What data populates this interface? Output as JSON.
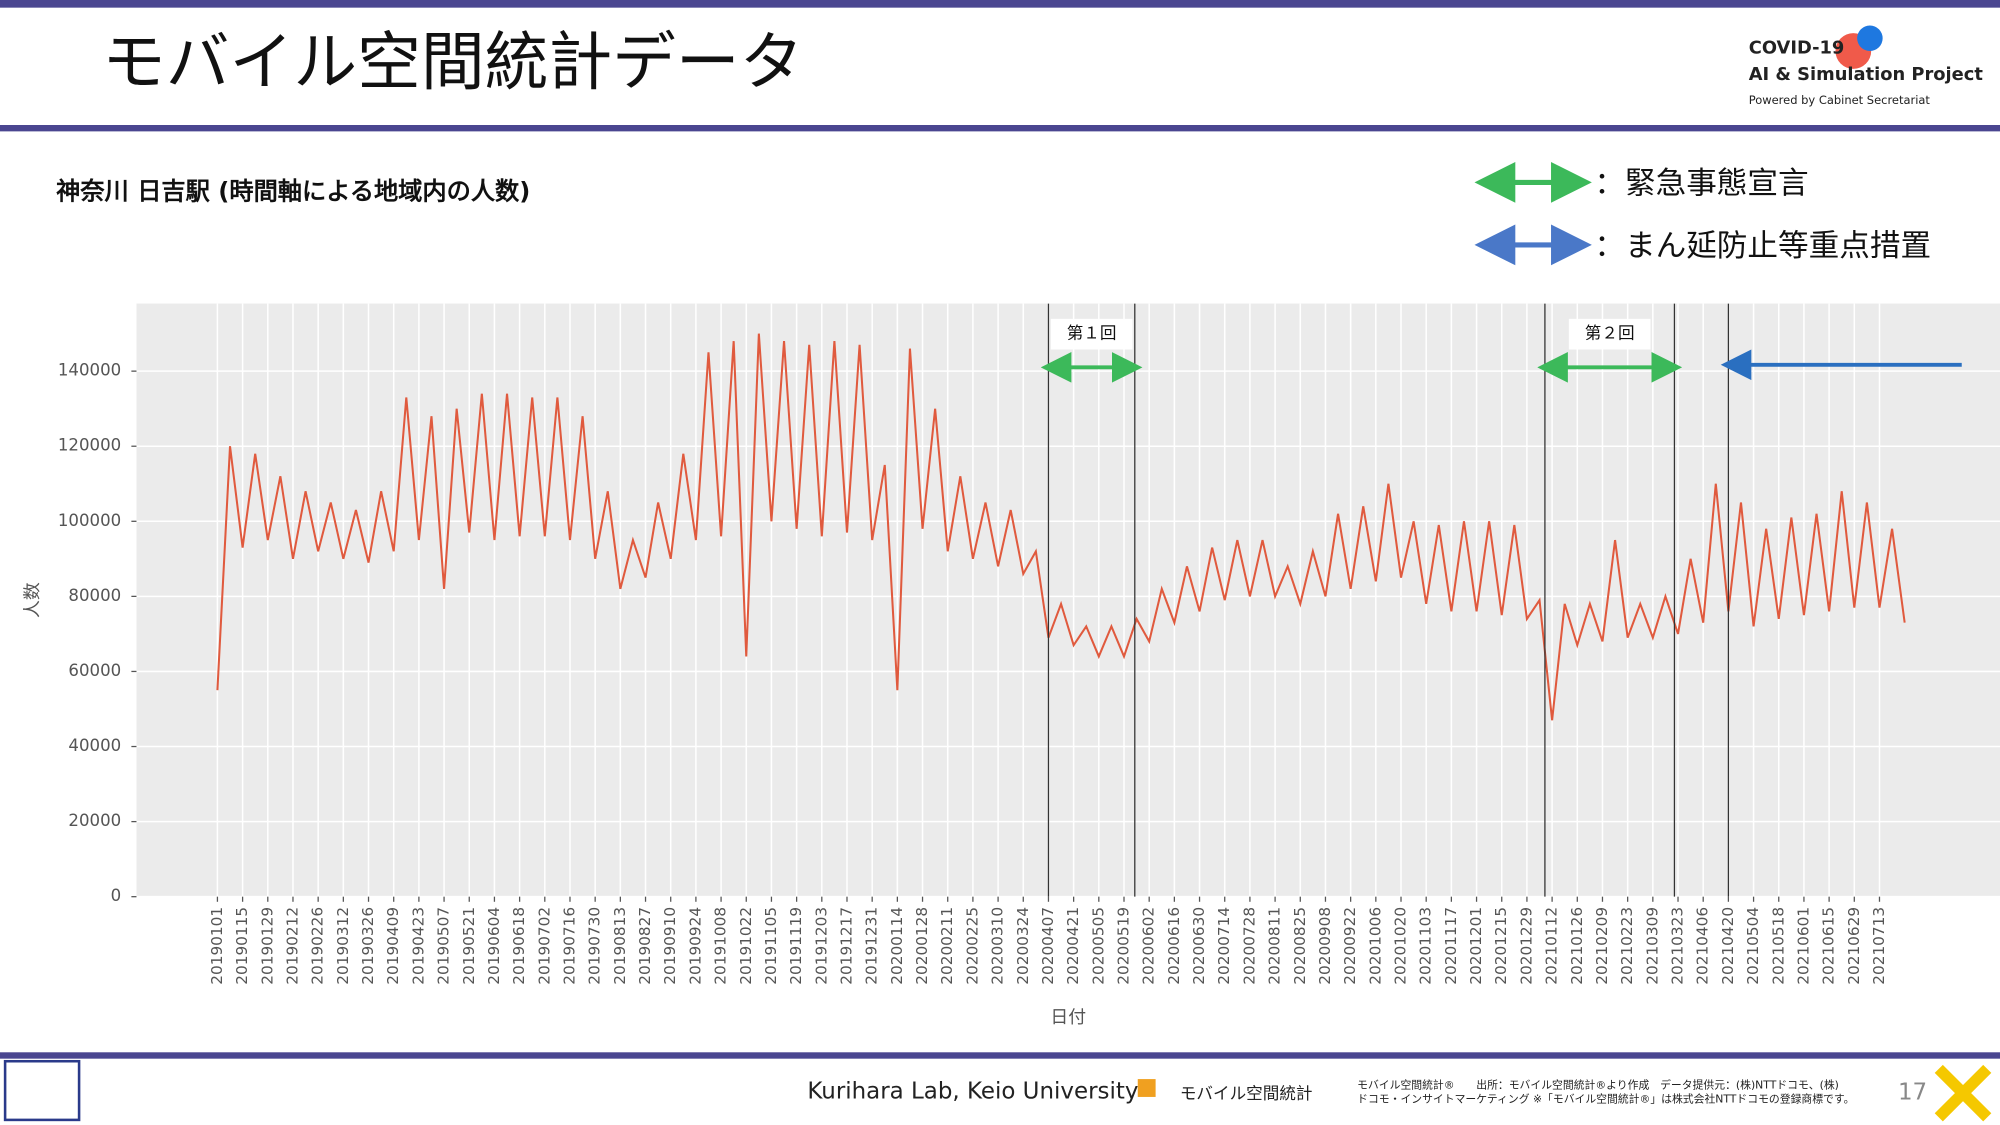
{
  "header": {
    "title": "モバイル空間統計データ",
    "logo_line1": "COVID-19",
    "logo_line2": "AI & Simulation Project",
    "logo_line3": "Powered by Cabinet Secretariat"
  },
  "legend": [
    {
      "text": "：緊急事態宣言",
      "color": "#3cb95a"
    },
    {
      "text": "：まん延防止等重点措置",
      "color": "#4a78c8"
    }
  ],
  "chart_data": {
    "type": "line",
    "title": "神奈川 日吉駅 (時間軸による地域内の人数)",
    "ylabel": "人数",
    "xlabel": "日付",
    "ylim": [
      0,
      158000
    ],
    "yticks": [
      0,
      20000,
      40000,
      60000,
      80000,
      100000,
      120000,
      140000
    ],
    "xlim": [
      "20181117",
      "20210918"
    ],
    "grid": true,
    "xticks": [
      "20190101",
      "20190115",
      "20190129",
      "20190212",
      "20190226",
      "20190312",
      "20190326",
      "20190409",
      "20190423",
      "20190507",
      "20190521",
      "20190604",
      "20190618",
      "20190702",
      "20190716",
      "20190730",
      "20190813",
      "20190827",
      "20190910",
      "20190924",
      "20191008",
      "20191022",
      "20191105",
      "20191119",
      "20191203",
      "20191217",
      "20191231",
      "20200114",
      "20200128",
      "20200211",
      "20200225",
      "20200310",
      "20200324",
      "20200407",
      "20200421",
      "20200505",
      "20200519",
      "20200602",
      "20200616",
      "20200630",
      "20200714",
      "20200728",
      "20200811",
      "20200825",
      "20200908",
      "20200922",
      "20201006",
      "20201020",
      "20201103",
      "20201117",
      "20201201",
      "20201215",
      "20201229",
      "20210112",
      "20210126",
      "20210209",
      "20210223",
      "20210309",
      "20210323",
      "20210406",
      "20210420",
      "20210504",
      "20210518",
      "20210601",
      "20210615",
      "20210629",
      "20210713"
    ],
    "x": [
      "20190101",
      "20190108",
      "20190115",
      "20190122",
      "20190129",
      "20190205",
      "20190212",
      "20190219",
      "20190226",
      "20190305",
      "20190312",
      "20190319",
      "20190326",
      "20190402",
      "20190409",
      "20190416",
      "20190423",
      "20190430",
      "20190507",
      "20190514",
      "20190521",
      "20190528",
      "20190604",
      "20190611",
      "20190618",
      "20190625",
      "20190702",
      "20190709",
      "20190716",
      "20190723",
      "20190730",
      "20190806",
      "20190813",
      "20190820",
      "20190827",
      "20190903",
      "20190910",
      "20190917",
      "20190924",
      "20191001",
      "20191008",
      "20191015",
      "20191022",
      "20191029",
      "20191105",
      "20191112",
      "20191119",
      "20191126",
      "20191203",
      "20191210",
      "20191217",
      "20191224",
      "20191231",
      "20200107",
      "20200114",
      "20200121",
      "20200128",
      "20200204",
      "20200211",
      "20200218",
      "20200225",
      "20200303",
      "20200310",
      "20200317",
      "20200324",
      "20200331",
      "20200407",
      "20200414",
      "20200421",
      "20200428",
      "20200505",
      "20200512",
      "20200519",
      "20200526",
      "20200602",
      "20200609",
      "20200616",
      "20200623",
      "20200630",
      "20200707",
      "20200714",
      "20200721",
      "20200728",
      "20200804",
      "20200811",
      "20200818",
      "20200825",
      "20200901",
      "20200908",
      "20200915",
      "20200922",
      "20200929",
      "20201006",
      "20201013",
      "20201020",
      "20201027",
      "20201103",
      "20201110",
      "20201117",
      "20201124",
      "20201201",
      "20201208",
      "20201215",
      "20201222",
      "20201229",
      "20210105",
      "20210112",
      "20210119",
      "20210126",
      "20210202",
      "20210209",
      "20210216",
      "20210223",
      "20210302",
      "20210309",
      "20210316",
      "20210323",
      "20210330",
      "20210406",
      "20210413",
      "20210420",
      "20210427",
      "20210504",
      "20210511",
      "20210518",
      "20210525",
      "20210601",
      "20210608",
      "20210615",
      "20210622",
      "20210629",
      "20210706",
      "20210713",
      "20210720",
      "20210727"
    ],
    "series": [
      {
        "color": "#e05a3e",
        "values": [
          55000,
          120000,
          93000,
          118000,
          95000,
          112000,
          90000,
          108000,
          92000,
          105000,
          90000,
          103000,
          89000,
          108000,
          92000,
          133000,
          95000,
          128000,
          82000,
          130000,
          97000,
          134000,
          95000,
          134000,
          96000,
          133000,
          96000,
          133000,
          95000,
          128000,
          90000,
          108000,
          82000,
          95000,
          85000,
          105000,
          90000,
          118000,
          95000,
          145000,
          96000,
          148000,
          64000,
          150000,
          100000,
          148000,
          98000,
          147000,
          96000,
          148000,
          97000,
          147000,
          95000,
          115000,
          55000,
          146000,
          98000,
          130000,
          92000,
          112000,
          90000,
          105000,
          88000,
          103000,
          86000,
          92000,
          69000,
          78000,
          67000,
          72000,
          64000,
          72000,
          64000,
          74000,
          68000,
          82000,
          73000,
          88000,
          76000,
          93000,
          79000,
          95000,
          80000,
          95000,
          80000,
          88000,
          78000,
          92000,
          80000,
          102000,
          82000,
          104000,
          84000,
          110000,
          85000,
          100000,
          78000,
          99000,
          76000,
          100000,
          76000,
          100000,
          75000,
          99000,
          74000,
          79000,
          47000,
          78000,
          67000,
          78000,
          68000,
          95000,
          69000,
          78000,
          69000,
          80000,
          70000,
          90000,
          73000,
          110000,
          76000,
          105000,
          72000,
          98000,
          74000,
          101000,
          75000,
          102000,
          76000,
          108000,
          77000,
          105000,
          77000,
          98000,
          73000
        ]
      }
    ],
    "vlines": [
      "20200407",
      "20200525",
      "20210108",
      "20210321",
      "20210420"
    ],
    "periods": [
      {
        "label": "第１回",
        "start": "20200407",
        "end": "20200525"
      },
      {
        "label": "第２回",
        "start": "20210108",
        "end": "20210321"
      }
    ]
  },
  "footer": {
    "lab": "Kurihara Lab, Keio University",
    "brand": "モバイル空間統計",
    "note1": "モバイル空間統計®　　出所：モバイル空間統計®より作成　データ提供元：(株)NTTドコモ、(株)",
    "note2": "ドコモ・インサイトマーケティング ※「モバイル空間統計®」は株式会社NTTドコモの登録商標です。",
    "page": "17"
  }
}
